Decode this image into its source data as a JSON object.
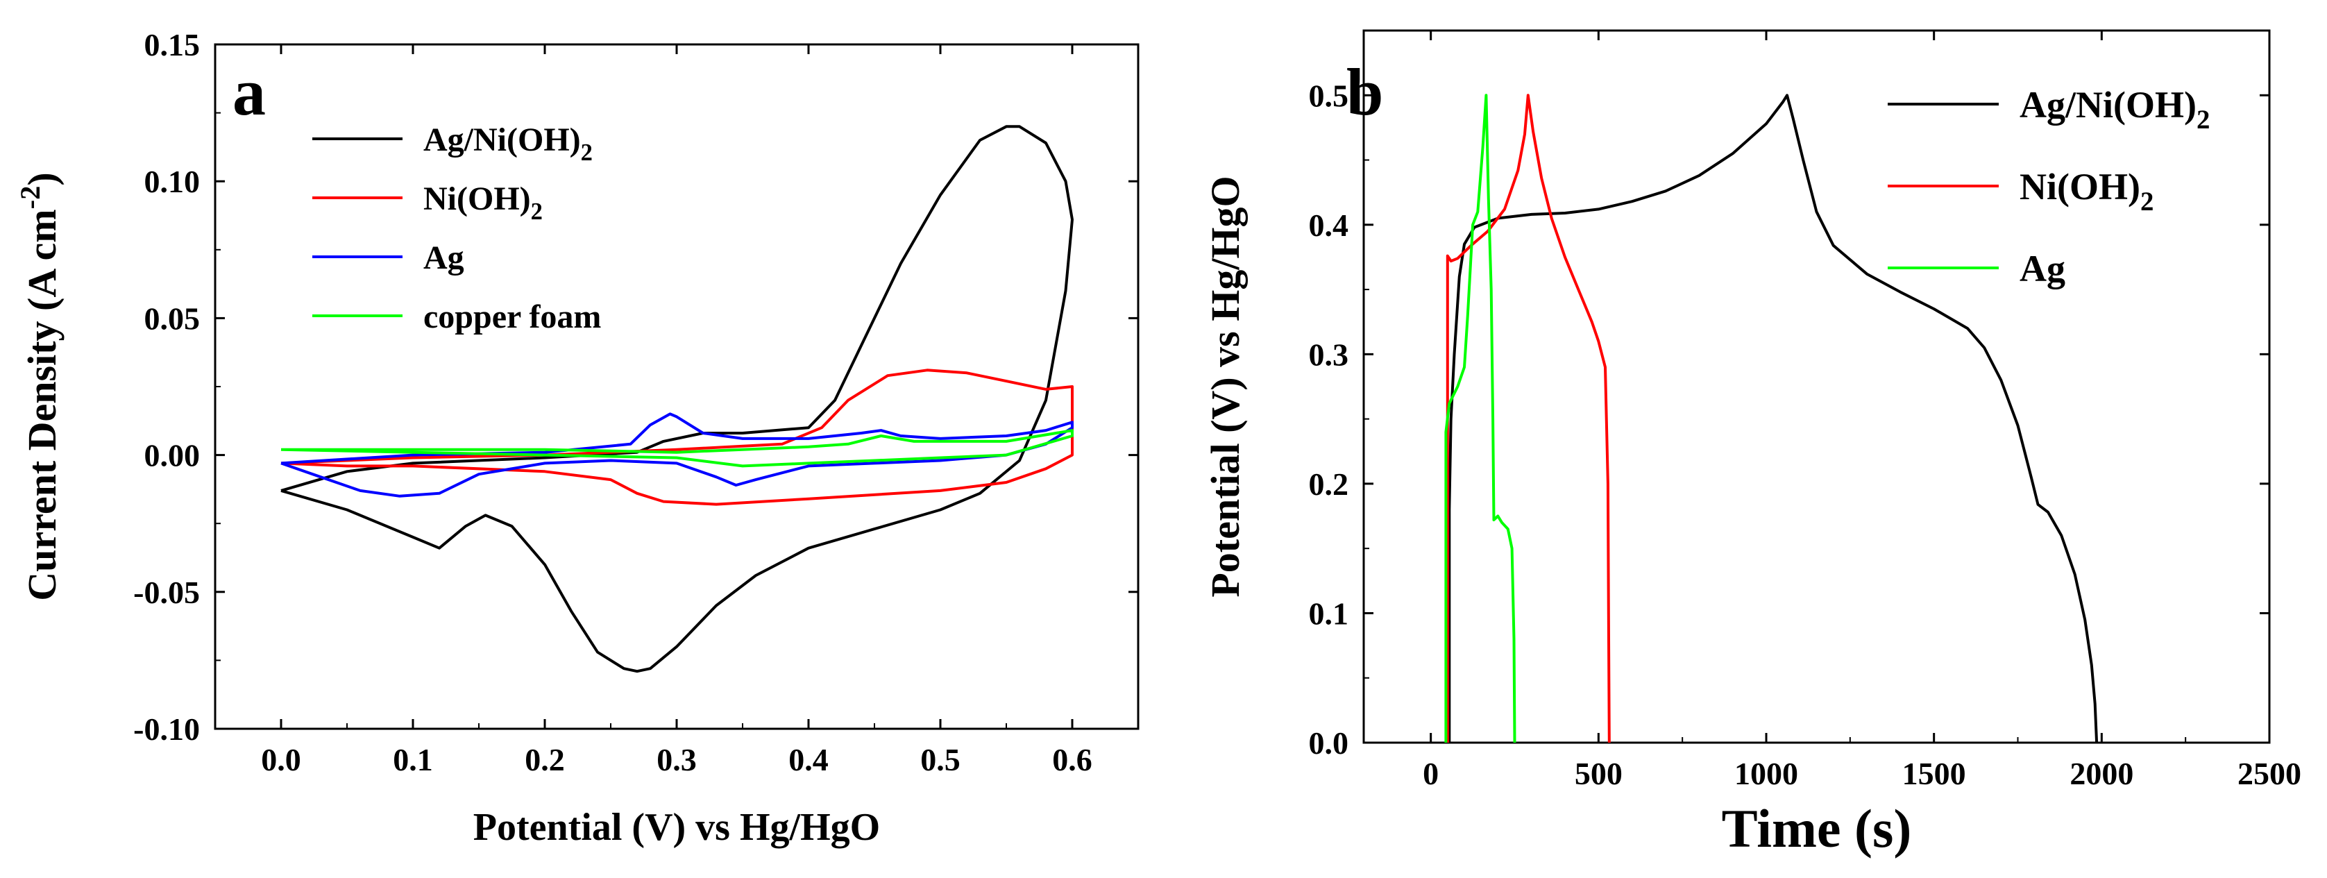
{
  "chart_data": [
    {
      "type": "line",
      "panel_label": "a",
      "title": "",
      "xlabel": "Potential (V) vs Hg/HgO",
      "ylabel": "Current Density (A cm",
      "ylabel_sup": "-2",
      "ylabel_tail": ")",
      "xlim": [
        -0.05,
        0.65
      ],
      "ylim": [
        -0.1,
        0.15
      ],
      "xticks": [
        0.0,
        0.1,
        0.2,
        0.3,
        0.4,
        0.5,
        0.6
      ],
      "xtick_labels": [
        "0.0",
        "0.1",
        "0.2",
        "0.3",
        "0.4",
        "0.5",
        "0.6"
      ],
      "yticks": [
        -0.1,
        -0.05,
        0.0,
        0.05,
        0.1,
        0.15
      ],
      "ytick_labels": [
        "-0.10",
        "-0.05",
        "0.00",
        "0.05",
        "0.10",
        "0.15"
      ],
      "legend_position": "top-left",
      "series": [
        {
          "name": "Ag/Ni(OH)2",
          "label_main": "Ag/Ni(OH)",
          "label_sub": "2",
          "color": "#000000",
          "points": [
            [
              0.0,
              -0.013
            ],
            [
              0.05,
              -0.02
            ],
            [
              0.1,
              -0.03
            ],
            [
              0.12,
              -0.034
            ],
            [
              0.14,
              -0.026
            ],
            [
              0.155,
              -0.022
            ],
            [
              0.175,
              -0.026
            ],
            [
              0.2,
              -0.04
            ],
            [
              0.22,
              -0.057
            ],
            [
              0.24,
              -0.072
            ],
            [
              0.26,
              -0.078
            ],
            [
              0.27,
              -0.079
            ],
            [
              0.28,
              -0.078
            ],
            [
              0.3,
              -0.07
            ],
            [
              0.33,
              -0.055
            ],
            [
              0.36,
              -0.044
            ],
            [
              0.4,
              -0.034
            ],
            [
              0.45,
              -0.027
            ],
            [
              0.5,
              -0.02
            ],
            [
              0.53,
              -0.014
            ],
            [
              0.56,
              -0.002
            ],
            [
              0.58,
              0.02
            ],
            [
              0.595,
              0.06
            ],
            [
              0.6,
              0.086
            ],
            [
              0.595,
              0.1
            ],
            [
              0.58,
              0.114
            ],
            [
              0.56,
              0.12
            ],
            [
              0.55,
              0.12
            ],
            [
              0.53,
              0.115
            ],
            [
              0.5,
              0.095
            ],
            [
              0.47,
              0.07
            ],
            [
              0.44,
              0.04
            ],
            [
              0.42,
              0.02
            ],
            [
              0.4,
              0.01
            ],
            [
              0.35,
              0.008
            ],
            [
              0.32,
              0.008
            ],
            [
              0.29,
              0.005
            ],
            [
              0.27,
              0.001
            ],
            [
              0.2,
              -0.001
            ],
            [
              0.1,
              -0.003
            ],
            [
              0.05,
              -0.006
            ],
            [
              0.0,
              -0.013
            ]
          ]
        },
        {
          "name": "Ni(OH)2",
          "label_main": "Ni(OH)",
          "label_sub": "2",
          "color": "#ff0000",
          "points": [
            [
              0.0,
              -0.003
            ],
            [
              0.05,
              -0.004
            ],
            [
              0.1,
              -0.004
            ],
            [
              0.2,
              -0.006
            ],
            [
              0.25,
              -0.009
            ],
            [
              0.27,
              -0.014
            ],
            [
              0.29,
              -0.017
            ],
            [
              0.33,
              -0.018
            ],
            [
              0.4,
              -0.016
            ],
            [
              0.5,
              -0.013
            ],
            [
              0.55,
              -0.01
            ],
            [
              0.58,
              -0.005
            ],
            [
              0.6,
              0.0
            ],
            [
              0.6,
              0.025
            ],
            [
              0.58,
              0.024
            ],
            [
              0.55,
              0.027
            ],
            [
              0.52,
              0.03
            ],
            [
              0.49,
              0.031
            ],
            [
              0.46,
              0.029
            ],
            [
              0.43,
              0.02
            ],
            [
              0.41,
              0.01
            ],
            [
              0.38,
              0.004
            ],
            [
              0.3,
              0.002
            ],
            [
              0.2,
              0.0
            ],
            [
              0.1,
              -0.001
            ],
            [
              0.0,
              -0.003
            ]
          ]
        },
        {
          "name": "Ag",
          "label_main": "Ag",
          "label_sub": "",
          "color": "#0000ff",
          "points": [
            [
              0.0,
              -0.003
            ],
            [
              0.03,
              -0.008
            ],
            [
              0.06,
              -0.013
            ],
            [
              0.09,
              -0.015
            ],
            [
              0.12,
              -0.014
            ],
            [
              0.15,
              -0.007
            ],
            [
              0.2,
              -0.003
            ],
            [
              0.25,
              -0.002
            ],
            [
              0.3,
              -0.003
            ],
            [
              0.33,
              -0.008
            ],
            [
              0.345,
              -0.011
            ],
            [
              0.36,
              -0.009
            ],
            [
              0.4,
              -0.004
            ],
            [
              0.45,
              -0.003
            ],
            [
              0.5,
              -0.002
            ],
            [
              0.55,
              0.0
            ],
            [
              0.58,
              0.004
            ],
            [
              0.6,
              0.01
            ],
            [
              0.6,
              0.012
            ],
            [
              0.58,
              0.009
            ],
            [
              0.55,
              0.007
            ],
            [
              0.5,
              0.006
            ],
            [
              0.47,
              0.007
            ],
            [
              0.455,
              0.009
            ],
            [
              0.44,
              0.008
            ],
            [
              0.4,
              0.006
            ],
            [
              0.35,
              0.006
            ],
            [
              0.32,
              0.008
            ],
            [
              0.3,
              0.014
            ],
            [
              0.295,
              0.015
            ],
            [
              0.28,
              0.011
            ],
            [
              0.265,
              0.004
            ],
            [
              0.2,
              0.001
            ],
            [
              0.1,
              0.0
            ],
            [
              0.0,
              -0.003
            ]
          ]
        },
        {
          "name": "copper foam",
          "label_main": "copper foam",
          "label_sub": "",
          "color": "#00ff00",
          "points": [
            [
              0.0,
              0.002
            ],
            [
              0.1,
              0.002
            ],
            [
              0.2,
              0.002
            ],
            [
              0.3,
              0.001
            ],
            [
              0.35,
              0.002
            ],
            [
              0.4,
              0.003
            ],
            [
              0.43,
              0.004
            ],
            [
              0.455,
              0.007
            ],
            [
              0.48,
              0.005
            ],
            [
              0.55,
              0.005
            ],
            [
              0.6,
              0.009
            ],
            [
              0.6,
              0.007
            ],
            [
              0.55,
              0.0
            ],
            [
              0.5,
              -0.001
            ],
            [
              0.45,
              -0.002
            ],
            [
              0.4,
              -0.003
            ],
            [
              0.35,
              -0.004
            ],
            [
              0.3,
              -0.001
            ],
            [
              0.2,
              0.0
            ],
            [
              0.1,
              0.001
            ],
            [
              0.0,
              0.002
            ]
          ]
        }
      ]
    },
    {
      "type": "line",
      "panel_label": "b",
      "title": "",
      "xlabel": "Time (s)",
      "ylabel": "Potential (V) vs Hg/HgO",
      "xlim": [
        -200,
        2500
      ],
      "ylim": [
        0.0,
        0.55
      ],
      "xticks": [
        0,
        500,
        1000,
        1500,
        2000,
        2500
      ],
      "xtick_labels": [
        "0",
        "500",
        "1000",
        "1500",
        "2000",
        "2500"
      ],
      "yticks": [
        0.0,
        0.1,
        0.2,
        0.3,
        0.4,
        0.5
      ],
      "ytick_labels": [
        "0.0",
        "0.1",
        "0.2",
        "0.3",
        "0.4",
        "0.5"
      ],
      "legend_position": "top-right",
      "series": [
        {
          "name": "Ag/Ni(OH)2",
          "label_main": "Ag/Ni(OH)",
          "label_sub": "2",
          "color": "#000000",
          "points": [
            [
              55,
              0.0
            ],
            [
              55,
              0.18
            ],
            [
              60,
              0.25
            ],
            [
              70,
              0.3
            ],
            [
              85,
              0.36
            ],
            [
              100,
              0.385
            ],
            [
              130,
              0.398
            ],
            [
              200,
              0.405
            ],
            [
              300,
              0.408
            ],
            [
              400,
              0.409
            ],
            [
              500,
              0.412
            ],
            [
              600,
              0.418
            ],
            [
              700,
              0.426
            ],
            [
              800,
              0.438
            ],
            [
              900,
              0.455
            ],
            [
              1000,
              0.478
            ],
            [
              1050,
              0.495
            ],
            [
              1062,
              0.5
            ],
            [
              1080,
              0.482
            ],
            [
              1110,
              0.45
            ],
            [
              1150,
              0.41
            ],
            [
              1200,
              0.384
            ],
            [
              1300,
              0.362
            ],
            [
              1400,
              0.348
            ],
            [
              1500,
              0.335
            ],
            [
              1600,
              0.32
            ],
            [
              1650,
              0.305
            ],
            [
              1700,
              0.28
            ],
            [
              1750,
              0.245
            ],
            [
              1790,
              0.205
            ],
            [
              1810,
              0.184
            ],
            [
              1840,
              0.178
            ],
            [
              1880,
              0.16
            ],
            [
              1920,
              0.13
            ],
            [
              1950,
              0.095
            ],
            [
              1970,
              0.06
            ],
            [
              1980,
              0.03
            ],
            [
              1985,
              0.0
            ]
          ]
        },
        {
          "name": "Ni(OH)2",
          "label_main": "Ni(OH)",
          "label_sub": "2",
          "color": "#ff0000",
          "points": [
            [
              50,
              0.0
            ],
            [
              50,
              0.376
            ],
            [
              60,
              0.372
            ],
            [
              80,
              0.374
            ],
            [
              120,
              0.384
            ],
            [
              170,
              0.395
            ],
            [
              220,
              0.412
            ],
            [
              260,
              0.442
            ],
            [
              280,
              0.47
            ],
            [
              290,
              0.5
            ],
            [
              305,
              0.472
            ],
            [
              330,
              0.436
            ],
            [
              360,
              0.405
            ],
            [
              400,
              0.375
            ],
            [
              440,
              0.35
            ],
            [
              480,
              0.325
            ],
            [
              500,
              0.31
            ],
            [
              520,
              0.29
            ],
            [
              528,
              0.2
            ],
            [
              530,
              0.1
            ],
            [
              532,
              0.0
            ]
          ]
        },
        {
          "name": "Ag",
          "label_main": "Ag",
          "label_sub": "",
          "color": "#00ff00",
          "points": [
            [
              45,
              0.0
            ],
            [
              45,
              0.24
            ],
            [
              55,
              0.262
            ],
            [
              80,
              0.275
            ],
            [
              100,
              0.29
            ],
            [
              110,
              0.33
            ],
            [
              125,
              0.4
            ],
            [
              140,
              0.41
            ],
            [
              155,
              0.46
            ],
            [
              165,
              0.5
            ],
            [
              172,
              0.42
            ],
            [
              180,
              0.35
            ],
            [
              185,
              0.25
            ],
            [
              188,
              0.172
            ],
            [
              200,
              0.175
            ],
            [
              212,
              0.17
            ],
            [
              230,
              0.165
            ],
            [
              242,
              0.15
            ],
            [
              248,
              0.08
            ],
            [
              250,
              0.0
            ]
          ]
        }
      ]
    }
  ]
}
